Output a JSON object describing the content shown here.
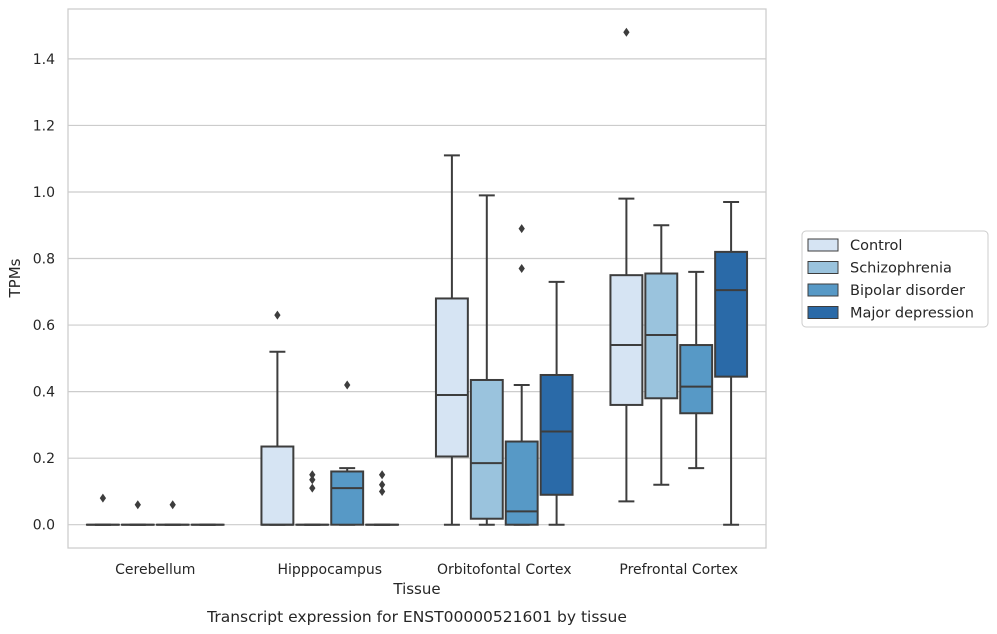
{
  "chart_data": {
    "type": "boxplot",
    "title": "",
    "caption": "Transcript expression for ENST00000521601 by tissue",
    "xlabel": "Tissue",
    "ylabel": "TPMs",
    "ylim": [
      -0.07,
      1.55
    ],
    "yticks": [
      0.0,
      0.2,
      0.4,
      0.6,
      0.8,
      1.0,
      1.2,
      1.4
    ],
    "ytick_labels": [
      "0.0",
      "0.2",
      "0.4",
      "0.6",
      "0.8",
      "1.0",
      "1.2",
      "1.4"
    ],
    "grid": "y",
    "legend_placement": "right",
    "categories": [
      "Cerebellum",
      "Hipppocampus",
      "Orbitofontal Cortex",
      "Prefrontal Cortex"
    ],
    "series": [
      {
        "name": "Control",
        "color": "#d6e4f3",
        "boxes": [
          {
            "min": 0,
            "q1": 0,
            "median": 0,
            "q3": 0,
            "max": 0,
            "outliers": [
              0.08
            ]
          },
          {
            "min": 0,
            "q1": 0,
            "median": 0,
            "q3": 0.235,
            "max": 0.52,
            "outliers": [
              0.63
            ]
          },
          {
            "min": 0,
            "q1": 0.205,
            "median": 0.39,
            "q3": 0.68,
            "max": 1.11,
            "outliers": []
          },
          {
            "min": 0.07,
            "q1": 0.36,
            "median": 0.54,
            "q3": 0.75,
            "max": 0.98,
            "outliers": [
              1.48
            ]
          }
        ]
      },
      {
        "name": "Schizophrenia",
        "color": "#9ac3dd",
        "boxes": [
          {
            "min": 0,
            "q1": 0,
            "median": 0,
            "q3": 0,
            "max": 0,
            "outliers": [
              0.06
            ]
          },
          {
            "min": 0,
            "q1": 0,
            "median": 0,
            "q3": 0,
            "max": 0,
            "outliers": [
              0.15,
              0.135,
              0.11
            ]
          },
          {
            "min": 0,
            "q1": 0.018,
            "median": 0.185,
            "q3": 0.435,
            "max": 0.99,
            "outliers": []
          },
          {
            "min": 0.12,
            "q1": 0.38,
            "median": 0.57,
            "q3": 0.755,
            "max": 0.9,
            "outliers": []
          }
        ]
      },
      {
        "name": "Bipolar disorder",
        "color": "#5799c6",
        "boxes": [
          {
            "min": 0,
            "q1": 0,
            "median": 0,
            "q3": 0,
            "max": 0,
            "outliers": [
              0.06
            ]
          },
          {
            "min": 0,
            "q1": 0,
            "median": 0.11,
            "q3": 0.16,
            "max": 0.17,
            "outliers": [
              0.42
            ]
          },
          {
            "min": 0,
            "q1": 0,
            "median": 0.04,
            "q3": 0.25,
            "max": 0.42,
            "outliers": [
              0.89,
              0.77
            ]
          },
          {
            "min": 0.17,
            "q1": 0.335,
            "median": 0.415,
            "q3": 0.54,
            "max": 0.76,
            "outliers": []
          }
        ]
      },
      {
        "name": "Major depression",
        "color": "#2a6aa8",
        "boxes": [
          {
            "min": 0,
            "q1": 0,
            "median": 0,
            "q3": 0,
            "max": 0,
            "outliers": []
          },
          {
            "min": 0,
            "q1": 0,
            "median": 0,
            "q3": 0,
            "max": 0,
            "outliers": [
              0.15,
              0.12,
              0.1
            ]
          },
          {
            "min": 0,
            "q1": 0.09,
            "median": 0.28,
            "q3": 0.45,
            "max": 0.73,
            "outliers": []
          },
          {
            "min": 0,
            "q1": 0.445,
            "median": 0.705,
            "q3": 0.82,
            "max": 0.97,
            "outliers": []
          }
        ]
      }
    ]
  }
}
